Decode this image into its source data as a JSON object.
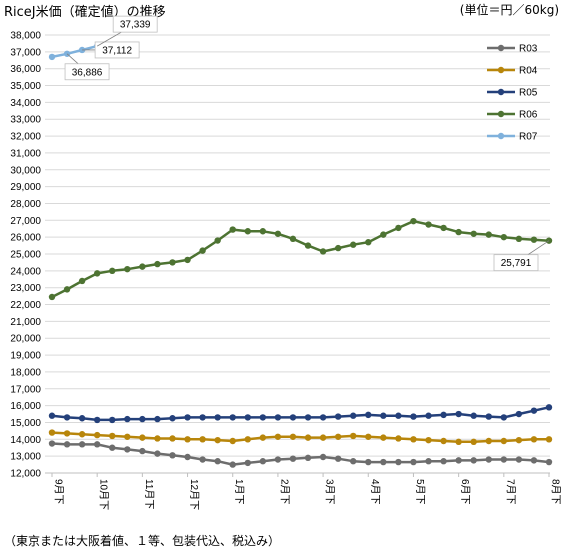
{
  "header": {
    "title": "RiceJ米価（確定値）の推移",
    "unit": "(単位＝円／60kg)"
  },
  "footer": {
    "note": "（東京または大阪着値、１等、包装代込、税込み）"
  },
  "chart_data": {
    "type": "line",
    "title": "RiceJ米価（確定値）の推移",
    "ylabel": "",
    "xlabel": "",
    "ylim": [
      12000,
      38000
    ],
    "ytick_step": 1000,
    "grid": "horizontal",
    "legend_position": "top-right",
    "x_ticks": [
      {
        "label": "9月下",
        "index": 0
      },
      {
        "label": "10月下",
        "index": 3
      },
      {
        "label": "11月下",
        "index": 6
      },
      {
        "label": "12月下",
        "index": 9
      },
      {
        "label": "1月下",
        "index": 12
      },
      {
        "label": "2月下",
        "index": 15
      },
      {
        "label": "3月下",
        "index": 18
      },
      {
        "label": "4月下",
        "index": 21
      },
      {
        "label": "5月下",
        "index": 24
      },
      {
        "label": "6月下",
        "index": 27
      },
      {
        "label": "7月下",
        "index": 30
      },
      {
        "label": "8月下",
        "index": 33
      }
    ],
    "x_count": 34,
    "series": [
      {
        "name": "R03",
        "color": "#6d6d6d",
        "values": [
          13750,
          13700,
          13700,
          13700,
          13500,
          13400,
          13300,
          13150,
          13050,
          12950,
          12800,
          12700,
          12500,
          12600,
          12700,
          12800,
          12850,
          12900,
          12950,
          12850,
          12700,
          12650,
          12650,
          12650,
          12650,
          12700,
          12700,
          12750,
          12750,
          12800,
          12800,
          12800,
          12750,
          12650
        ]
      },
      {
        "name": "R04",
        "color": "#b8860b",
        "values": [
          14400,
          14350,
          14300,
          14250,
          14200,
          14150,
          14100,
          14050,
          14050,
          14000,
          14000,
          13950,
          13900,
          14000,
          14100,
          14150,
          14150,
          14100,
          14100,
          14150,
          14200,
          14150,
          14100,
          14050,
          14000,
          13950,
          13900,
          13850,
          13850,
          13900,
          13900,
          13950,
          14000,
          14000
        ]
      },
      {
        "name": "R05",
        "color": "#24407a",
        "values": [
          15400,
          15300,
          15250,
          15150,
          15150,
          15200,
          15200,
          15200,
          15250,
          15300,
          15300,
          15300,
          15300,
          15300,
          15300,
          15300,
          15300,
          15300,
          15300,
          15350,
          15400,
          15450,
          15400,
          15400,
          15350,
          15400,
          15450,
          15500,
          15400,
          15350,
          15300,
          15500,
          15700,
          15900
        ]
      },
      {
        "name": "R06",
        "color": "#4d7332",
        "values": [
          22450,
          22900,
          23400,
          23850,
          24000,
          24100,
          24250,
          24400,
          24500,
          24650,
          25200,
          25800,
          26450,
          26350,
          26350,
          26200,
          25900,
          25500,
          25150,
          25350,
          25550,
          25700,
          26150,
          26550,
          26950,
          26750,
          26550,
          26300,
          26200,
          26150,
          26000,
          25900,
          25850,
          25791
        ]
      },
      {
        "name": "R07",
        "color": "#7fb1dc",
        "values": [
          36700,
          36886,
          37112,
          37339
        ]
      }
    ],
    "annotations": [
      {
        "series": "R07",
        "index": 1,
        "text": "36,886"
      },
      {
        "series": "R07",
        "index": 2,
        "text": "37,112"
      },
      {
        "series": "R07",
        "index": 3,
        "text": "37,339"
      },
      {
        "series": "R06",
        "index": 33,
        "text": "25,791"
      }
    ]
  }
}
